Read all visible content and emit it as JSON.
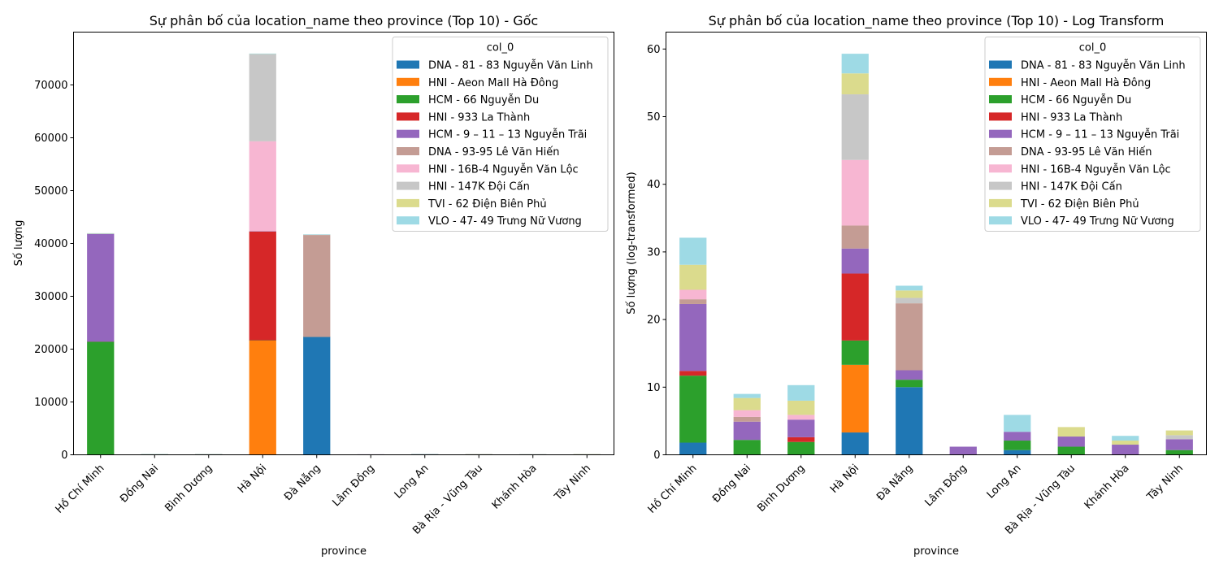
{
  "chart_data": [
    {
      "type": "bar",
      "stacked": true,
      "title": "Sự phân bố của location_name theo province (Top 10) - Gốc",
      "xlabel": "province",
      "ylabel": "Số lượng",
      "ylim": [
        0,
        80000
      ],
      "yticks": [
        0,
        10000,
        20000,
        30000,
        40000,
        50000,
        60000,
        70000
      ],
      "ytick_labels": [
        "0",
        "10000",
        "20000",
        "30000",
        "40000",
        "50000",
        "60000",
        "70000"
      ],
      "grid": false,
      "legend_title": "col_0",
      "legend_position": "top-right",
      "categories": [
        "Hồ Chí Minh",
        "Đồng Nai",
        "Bình Dương",
        "Hà Nội",
        "Đà Nẵng",
        "Lâm Đồng",
        "Long An",
        "Bà Rịa - Vũng Tàu",
        "Khánh Hòa",
        "Tây Ninh"
      ],
      "series": [
        {
          "name": "DNA - 81 - 83 Nguyễn Văn Linh",
          "color": "#1f77b4",
          "values": [
            5,
            8,
            6,
            26,
            22300,
            0,
            3,
            0,
            0,
            0
          ]
        },
        {
          "name": "HNI - Aeon Mall Hà Đông",
          "color": "#ff7f0e",
          "values": [
            0,
            0,
            0,
            21600,
            0,
            0,
            0,
            0,
            0,
            0
          ]
        },
        {
          "name": "HCM - 66 Nguyễn Du",
          "color": "#2ca02c",
          "values": [
            21400,
            8,
            6,
            36,
            3,
            0,
            3,
            3,
            0,
            1
          ]
        },
        {
          "name": "HNI - 933 La Thành",
          "color": "#d62728",
          "values": [
            1,
            0,
            1,
            20600,
            0,
            0,
            0,
            0,
            0,
            0
          ]
        },
        {
          "name": "HCM - 9 – 11 – 13 Nguyễn Trãi",
          "color": "#9467bd",
          "values": [
            20400,
            14,
            12,
            41,
            3,
            3,
            3,
            3,
            4,
            4
          ]
        },
        {
          "name": "DNA - 93-95 Lê Văn Hiến",
          "color": "#c49c94",
          "values": [
            1,
            1,
            0,
            27,
            19300,
            0,
            0,
            0,
            0,
            0
          ]
        },
        {
          "name": "HNI - 16B-4 Nguyễn Văn Lộc",
          "color": "#f7b6d2",
          "values": [
            3,
            2,
            1,
            17000,
            3,
            0,
            0,
            0,
            0,
            0
          ]
        },
        {
          "name": "HNI - 147K Đội Cấn",
          "color": "#c7c7c7",
          "values": [
            0,
            0,
            0,
            16500,
            1,
            0,
            0,
            0,
            0,
            1
          ]
        },
        {
          "name": "TVI - 62 Điện Biên Phủ",
          "color": "#dbdb8d",
          "values": [
            40,
            3,
            2,
            20,
            2,
            0,
            0,
            3,
            1,
            1
          ]
        },
        {
          "name": "VLO - 47- 49 Trưng Nữ Vương",
          "color": "#9edae5",
          "values": [
            50,
            1,
            4,
            19,
            1,
            0,
            10,
            0,
            1,
            0
          ]
        }
      ]
    },
    {
      "type": "bar",
      "stacked": true,
      "title": "Sự phân bố của location_name theo province (Top 10) - Log Transform",
      "xlabel": "province",
      "ylabel": "Số lượng (log-transformed)",
      "ylim": [
        0,
        62.5
      ],
      "yticks": [
        0,
        10,
        20,
        30,
        40,
        50,
        60
      ],
      "ytick_labels": [
        "0",
        "10",
        "20",
        "30",
        "40",
        "50",
        "60"
      ],
      "grid": false,
      "legend_title": "col_0",
      "legend_position": "top-right",
      "categories": [
        "Hồ Chí Minh",
        "Đồng Nai",
        "Bình Dương",
        "Hà Nội",
        "Đà Nẵng",
        "Lâm Đồng",
        "Long An",
        "Bà Rịa - Vũng Tàu",
        "Khánh Hòa",
        "Tây Ninh"
      ],
      "series": [
        {
          "name": "DNA - 81 - 83 Nguyễn Văn Linh",
          "color": "#1f77b4",
          "values": [
            1.8,
            0.0,
            0.0,
            3.3,
            10.0,
            0.0,
            0.7,
            0.0,
            0.0,
            0.0
          ]
        },
        {
          "name": "HNI - Aeon Mall Hà Đông",
          "color": "#ff7f0e",
          "values": [
            0.0,
            0.0,
            0.0,
            10.0,
            0.0,
            0.0,
            0.0,
            0.0,
            0.0,
            0.0
          ]
        },
        {
          "name": "HCM - 66 Nguyễn Du",
          "color": "#2ca02c",
          "values": [
            9.9,
            2.2,
            1.9,
            3.6,
            1.1,
            0.0,
            1.4,
            1.2,
            0.0,
            0.7
          ]
        },
        {
          "name": "HNI - 933 La Thành",
          "color": "#d62728",
          "values": [
            0.7,
            0.0,
            0.7,
            9.9,
            0.0,
            0.0,
            0.0,
            0.0,
            0.0,
            0.0
          ]
        },
        {
          "name": "HCM - 9 – 11 – 13 Nguyễn Trãi",
          "color": "#9467bd",
          "values": [
            9.9,
            2.7,
            2.6,
            3.7,
            1.4,
            1.2,
            1.3,
            1.5,
            1.5,
            1.6
          ]
        },
        {
          "name": "DNA - 93-95 Lê Văn Hiến",
          "color": "#c49c94",
          "values": [
            0.7,
            0.7,
            0.0,
            3.4,
            9.9,
            0.0,
            0.0,
            0.0,
            0.0,
            0.0
          ]
        },
        {
          "name": "HNI - 16B-4 Nguyễn Văn Lộc",
          "color": "#f7b6d2",
          "values": [
            1.4,
            1.0,
            0.7,
            9.7,
            0.0,
            0.0,
            0.0,
            0.0,
            0.0,
            0.0
          ]
        },
        {
          "name": "HNI - 147K Đội Cấn",
          "color": "#c7c7c7",
          "values": [
            0.0,
            0.0,
            0.0,
            9.7,
            0.8,
            0.0,
            0.0,
            0.0,
            0.0,
            0.6
          ]
        },
        {
          "name": "TVI - 62 Điện Biên Phủ",
          "color": "#dbdb8d",
          "values": [
            3.7,
            1.8,
            2.1,
            3.1,
            1.1,
            0.0,
            0.0,
            1.4,
            0.6,
            0.7
          ]
        },
        {
          "name": "VLO - 47- 49 Trưng Nữ Vương",
          "color": "#9edae5",
          "values": [
            4.0,
            0.6,
            2.3,
            2.9,
            0.7,
            0.0,
            2.5,
            0.0,
            0.7,
            0.0
          ]
        }
      ]
    }
  ]
}
